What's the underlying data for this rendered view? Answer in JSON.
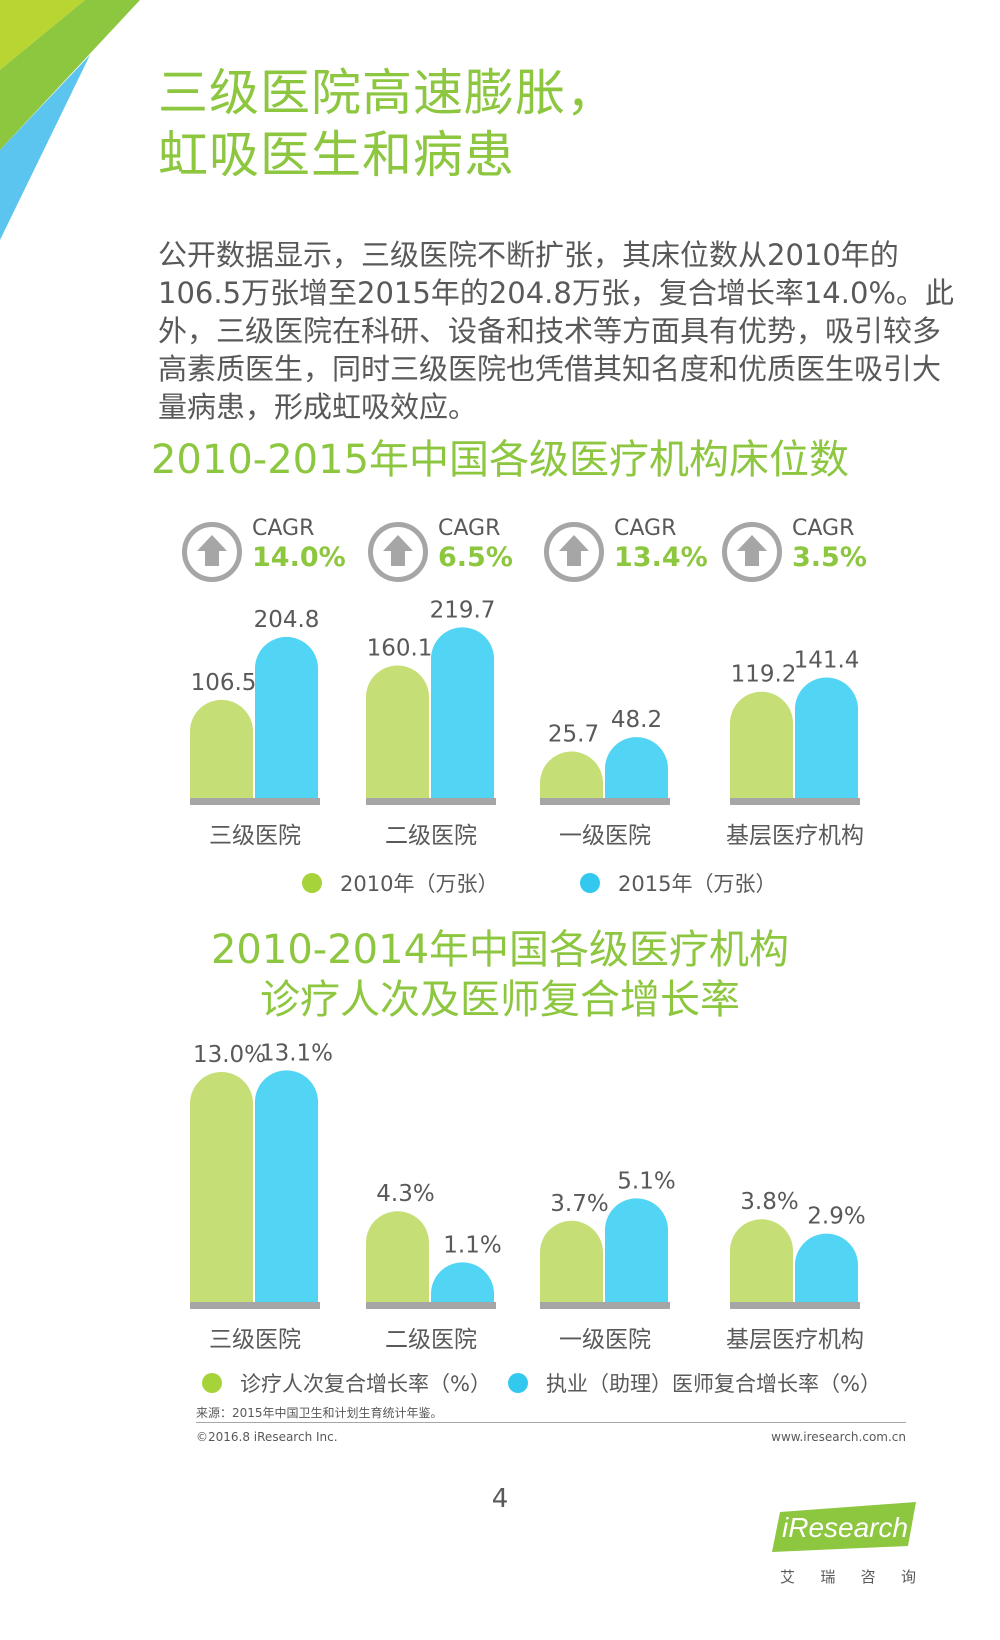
{
  "headline": {
    "line1": "三级医院高速膨胀，",
    "line2": "虹吸医生和病患"
  },
  "intro": "公开数据显示，三级医院不断扩张，其床位数从2010年的106.5万张增至2015年的204.8万张，复合增长率14.0%。此外，三级医院在科研、设备和技术等方面具有优势，吸引较多高素质医生，同时三级医院也凭借其知名度和优质医生吸引大量病患，形成虹吸效应。",
  "colors": {
    "green_bar": "#c5df76",
    "blue_bar": "#52d4f4",
    "title_green": "#8dc63f",
    "legend_green": "#a6d33a",
    "legend_blue": "#33c9ee",
    "text": "#595959",
    "base": "#a6a6a6"
  },
  "cagr": [
    {
      "label": "CAGR",
      "value": "14.0%",
      "icon": "up-arrow-icon"
    },
    {
      "label": "CAGR",
      "value": "6.5%",
      "icon": "up-arrow-icon"
    },
    {
      "label": "CAGR",
      "value": "13.4%",
      "icon": "up-arrow-icon"
    },
    {
      "label": "CAGR",
      "value": "3.5%",
      "icon": "up-arrow-icon"
    }
  ],
  "chart_data": [
    {
      "type": "bar",
      "title": "2010-2015年中国各级医疗机构床位数",
      "categories": [
        "三级医院",
        "二级医院",
        "一级医院",
        "基层医疗机构"
      ],
      "series": [
        {
          "name": "2010年（万张）",
          "values": [
            106.5,
            160.1,
            25.7,
            119.2
          ]
        },
        {
          "name": "2015年（万张）",
          "values": [
            204.8,
            219.7,
            48.2,
            141.4
          ]
        }
      ],
      "labels": [
        [
          "106.5",
          "160.1",
          "25.7",
          "119.2"
        ],
        [
          "204.8",
          "219.7",
          "48.2",
          "141.4"
        ]
      ],
      "legend_position": "bottom"
    },
    {
      "type": "bar",
      "title": "2010-2014年中国各级医疗机构诊疗人次及医师复合增长率",
      "categories": [
        "三级医院",
        "二级医院",
        "一级医院",
        "基层医疗机构"
      ],
      "series": [
        {
          "name": "诊疗人次复合增长率（%）",
          "values": [
            13.0,
            4.3,
            3.7,
            3.8
          ]
        },
        {
          "name": "执业（助理）医师复合增长率（%）",
          "values": [
            13.1,
            1.1,
            5.1,
            2.9
          ]
        }
      ],
      "labels": [
        [
          "13.0%",
          "4.3%",
          "3.7%",
          "3.8%"
        ],
        [
          "13.1%",
          "1.1%",
          "5.1%",
          "2.9%"
        ]
      ],
      "legend_position": "bottom"
    }
  ],
  "chart2_title": {
    "line1": "2010-2014年中国各级医疗机构",
    "line2": "诊疗人次及医师复合增长率"
  },
  "legend1": [
    "2010年（万张）",
    "2015年（万张）"
  ],
  "legend2": [
    "诊疗人次复合增长率（%）",
    "执业（助理）医师复合增长率（%）"
  ],
  "source": "来源：2015年中国卫生和计划生育统计年鉴。",
  "copyright": "©2016.8 iResearch Inc.",
  "website": "www.iresearch.com.cn",
  "page_number": "4",
  "brand": {
    "name": "iResearch",
    "sub": [
      "艾",
      "瑞",
      "咨",
      "询"
    ]
  }
}
